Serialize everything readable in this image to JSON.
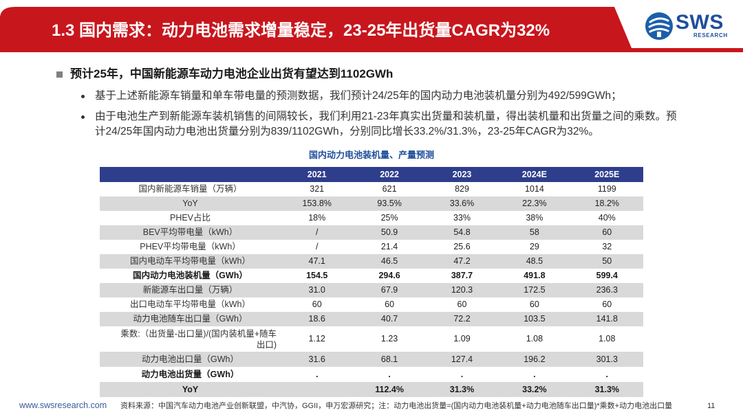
{
  "header": {
    "title": "1.3 国内需求：动力电池需求增量稳定，23-25年出货量CAGR为32%",
    "logo_main": "SWS",
    "logo_sub": "RESEARCH"
  },
  "content": {
    "main_bullet": "预计25年，中国新能源车动力电池企业出货有望达到1102GWh",
    "sub_bullets": [
      {
        "lines": [
          "基于上述新能源车销量和单车带电量的预测数据，我们预计24/25年的国内动力电池装机量分别为492/599GWh；"
        ]
      },
      {
        "lines": [
          "由于电池生产到新能源车装机销售的间隔较长，我们利用21-23年真实出货量和装机量，得出装机量和出货量之间的乘数。预",
          "计24/25年国内动力电池出货量分别为839/1102GWh，分别同比增长33.2%/31.3%，23-25年CAGR为32%。"
        ]
      }
    ]
  },
  "table": {
    "title": "国内动力电池装机量、产量预测",
    "columns": [
      "2021",
      "2022",
      "2023",
      "2024E",
      "2025E"
    ],
    "rows": [
      {
        "label": "国内新能源车销量（万辆）",
        "values": [
          "321",
          "621",
          "829",
          "1014",
          "1199"
        ]
      },
      {
        "label": "YoY",
        "values": [
          "153.8%",
          "93.5%",
          "33.6%",
          "22.3%",
          "18.2%"
        ]
      },
      {
        "label": "PHEV占比",
        "values": [
          "18%",
          "25%",
          "33%",
          "38%",
          "40%"
        ]
      },
      {
        "label": "BEV平均带电量（kWh）",
        "values": [
          "/",
          "50.9",
          "54.8",
          "58",
          "60"
        ]
      },
      {
        "label": "PHEV平均带电量（kWh）",
        "values": [
          "/",
          "21.4",
          "25.6",
          "29",
          "32"
        ]
      },
      {
        "label": "国内电动车平均带电量（kWh）",
        "values": [
          "47.1",
          "46.5",
          "47.2",
          "48.5",
          "50"
        ]
      },
      {
        "label": "国内动力电池装机量（GWh）",
        "values": [
          "154.5",
          "294.6",
          "387.7",
          "491.8",
          "599.4"
        ]
      },
      {
        "label": "新能源车出口量（万辆）",
        "values": [
          "31.0",
          "67.9",
          "120.3",
          "172.5",
          "236.3"
        ]
      },
      {
        "label": "出口电动车平均带电量（kWh）",
        "values": [
          "60",
          "60",
          "60",
          "60",
          "60"
        ]
      },
      {
        "label": "动力电池随车出口量（GWh）",
        "values": [
          "18.6",
          "40.7",
          "72.2",
          "103.5",
          "141.8"
        ]
      },
      {
        "label": "乘数:（出货量-出口量)/(国内装机量+随车",
        "label_cont": "出口)",
        "values": [
          "1.12",
          "1.23",
          "1.09",
          "1.08",
          "1.08"
        ]
      },
      {
        "label": "动力电池出口量（GWh）",
        "values": [
          "31.6",
          "68.1",
          "127.4",
          "196.2",
          "301.3"
        ]
      },
      {
        "label": "动力电池出货量（GWh）",
        "values": [
          ".",
          ".",
          ".",
          ".",
          "."
        ]
      },
      {
        "label": "YoY",
        "values": [
          "",
          "112.4%",
          "31.3%",
          "33.2%",
          "31.3%"
        ]
      }
    ]
  },
  "footer": {
    "website": "www.swsresearch.com",
    "source": "资料来源：中国汽车动力电池产业创新联盟，中汽协，GGII，申万宏源研究；注：动力电池出货量=(国内动力电池装机量+动力电池随车出口量)*乘数+动力电池出口量",
    "page_number": "11"
  },
  "icons": {
    "logo": "sws-logo-icon",
    "main_bullet": "square-bullet-icon",
    "sub_bullet": "dot-bullet-icon"
  },
  "colors": {
    "brand_red": "#c8161d",
    "table_header_navy": "#2e3e8c",
    "stripe_gray": "#d9d9d9",
    "accent_blue": "#1f4e9b",
    "logo_blue": "#1b5faa"
  }
}
